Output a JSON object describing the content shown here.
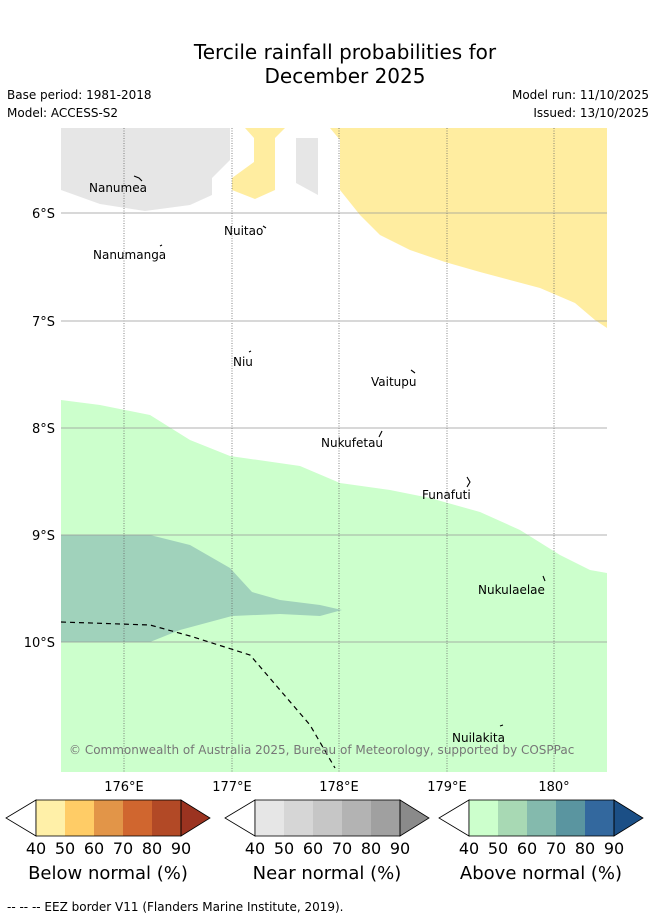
{
  "title": "Tercile rainfall probabilities for December 2025",
  "title_line1": "Tercile rainfall probabilities for",
  "title_line2": "December 2025",
  "base_period": "Base period: 1981-2018",
  "model": "Model: ACCESS-S2",
  "model_run": "Model run: 11/10/2025",
  "issued": "Issued: 13/10/2025",
  "map": {
    "lon_ticks": [
      "176°E",
      "177°E",
      "178°E",
      "179°E",
      "180°"
    ],
    "lat_ticks": [
      "6°S",
      "7°S",
      "8°S",
      "9°S",
      "10°S"
    ],
    "islands": [
      "Nanumea",
      "Nuitao",
      "Nanumanga",
      "Niu",
      "Vaitupu",
      "Nukufetau",
      "Funafuti",
      "Nukulaelae",
      "Nuilakita"
    ],
    "copyright": "© Commonwealth of Australia 2025, Bureau of Meteorology, supported by COSPPac"
  },
  "colorbars": [
    {
      "title": "Below normal (%)",
      "ticks": [
        "40",
        "50",
        "60",
        "70",
        "80",
        "90"
      ],
      "colors": [
        "#ffffff",
        "#fff0a8",
        "#ffcc66",
        "#e29548",
        "#d0662f",
        "#b24926",
        "#9b3320"
      ]
    },
    {
      "title": "Near normal (%)",
      "ticks": [
        "40",
        "50",
        "60",
        "70",
        "80",
        "90"
      ],
      "colors": [
        "#ffffff",
        "#e6e6e6",
        "#d6d6d6",
        "#c6c6c6",
        "#b3b3b3",
        "#a0a0a0",
        "#8a8a8a"
      ]
    },
    {
      "title": "Above normal (%)",
      "ticks": [
        "40",
        "50",
        "60",
        "70",
        "80",
        "90"
      ],
      "colors": [
        "#ffffff",
        "#ccffcc",
        "#a8d9b4",
        "#84baad",
        "#5a95a0",
        "#33689e",
        "#1b4f86"
      ]
    }
  ],
  "map_colors": {
    "near": "#e6e6e6",
    "below": "#ffeda0",
    "above": "#ccffcc",
    "above2": "#a0d2bb"
  },
  "footer": "--  --  -- EEZ border V11 (Flanders Marine Institute, 2019)."
}
